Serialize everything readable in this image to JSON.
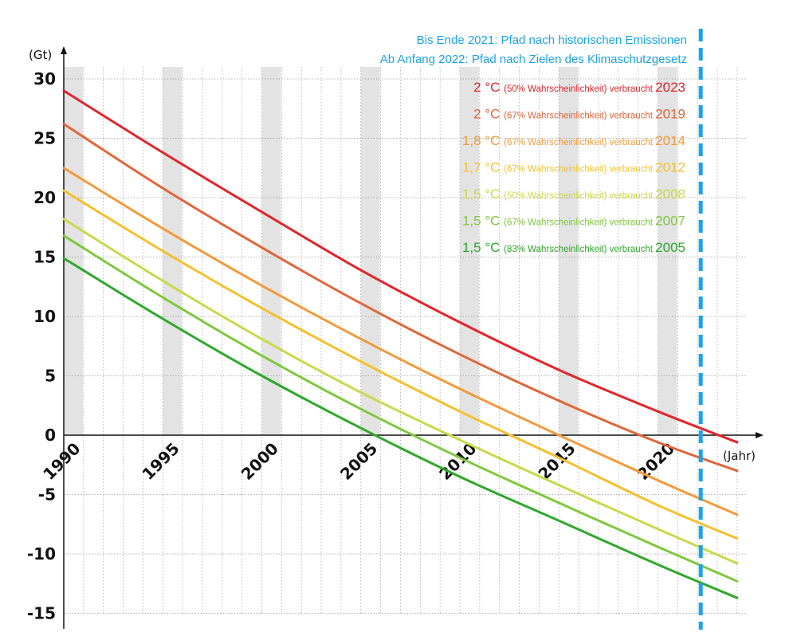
{
  "chart_data": {
    "type": "line",
    "ylabel": "(Gt)",
    "xlabel": "(Jahr)",
    "x_range": [
      1990,
      2024
    ],
    "y_range": [
      -15,
      30
    ],
    "yticks": [
      "30",
      "25",
      "20",
      "15",
      "10",
      "5",
      "0",
      "-5",
      "-10",
      "-15"
    ],
    "xticks": [
      "1990",
      "1995",
      "2000",
      "2005",
      "2010",
      "2015",
      "2020"
    ],
    "grid": true,
    "shaded_years": [
      1990,
      1995,
      2000,
      2005,
      2010,
      2015,
      2020
    ],
    "annotation": {
      "line1": "Bis Ende 2021: Pfad nach historischen Emissionen",
      "line2": "Ab Anfang 2022: Pfad nach Zielen des Klimaschutzgesetz",
      "marker_year": 2022,
      "color": "#1aa3e8"
    },
    "series": [
      {
        "temp": "2 °C",
        "prob": "(50% Wahrscheinlichkeit)",
        "verb": "verbraucht",
        "year_label": "2023",
        "color": "#e0262b",
        "x": [
          1990,
          1995,
          2000,
          2005,
          2010,
          2015,
          2020,
          2024
        ],
        "y": [
          29.0,
          23.8,
          18.8,
          13.9,
          9.5,
          5.5,
          2.0,
          -0.6
        ]
      },
      {
        "temp": "2 °C",
        "prob": "(67% Wahrscheinlichkeit)",
        "verb": "verbraucht",
        "year_label": "2019",
        "color": "#e0663a",
        "x": [
          1990,
          1995,
          2000,
          2005,
          2010,
          2015,
          2020,
          2024
        ],
        "y": [
          26.2,
          20.8,
          15.8,
          11.1,
          6.8,
          2.9,
          -0.6,
          -3.0
        ]
      },
      {
        "temp": "1,8 °C",
        "prob": "(67% Wahrscheinlichkeit)",
        "verb": "verbraucht",
        "year_label": "2014",
        "color": "#f39a3c",
        "x": [
          1990,
          1995,
          2000,
          2005,
          2010,
          2015,
          2020,
          2024
        ],
        "y": [
          22.5,
          17.4,
          12.6,
          8.1,
          3.9,
          0.0,
          -3.8,
          -6.7
        ]
      },
      {
        "temp": "1,7 °C",
        "prob": "(67% Wahrscheinlichkeit)",
        "verb": "verbraucht",
        "year_label": "2012",
        "color": "#f4c02e",
        "x": [
          1990,
          1995,
          2000,
          2005,
          2010,
          2015,
          2020,
          2024
        ],
        "y": [
          20.6,
          15.5,
          10.7,
          6.2,
          2.0,
          -1.9,
          -5.9,
          -8.7
        ]
      },
      {
        "temp": "1,5 °C",
        "prob": "(50% Wahrscheinlichkeit)",
        "verb": "verbraucht",
        "year_label": "2008",
        "color": "#c8d94a",
        "x": [
          1990,
          1995,
          2000,
          2005,
          2010,
          2015,
          2020,
          2024
        ],
        "y": [
          18.2,
          13.0,
          8.1,
          3.6,
          -0.4,
          -4.2,
          -7.9,
          -10.8
        ]
      },
      {
        "temp": "1,5 °C",
        "prob": "(67% Wahrscheinlichkeit)",
        "verb": "verbraucht",
        "year_label": "2007",
        "color": "#7fc83e",
        "x": [
          1990,
          1995,
          2000,
          2005,
          2010,
          2015,
          2020,
          2024
        ],
        "y": [
          16.8,
          11.6,
          6.7,
          2.2,
          -1.9,
          -5.7,
          -9.4,
          -12.3
        ]
      },
      {
        "temp": "1,5 °C",
        "prob": "(83% Wahrscheinlichkeit)",
        "verb": "verbraucht",
        "year_label": "2005",
        "color": "#2ea82b",
        "x": [
          1990,
          1995,
          2000,
          2005,
          2010,
          2015,
          2020,
          2024
        ],
        "y": [
          14.9,
          9.8,
          5.0,
          0.6,
          -3.5,
          -7.2,
          -10.9,
          -13.7
        ]
      }
    ]
  }
}
